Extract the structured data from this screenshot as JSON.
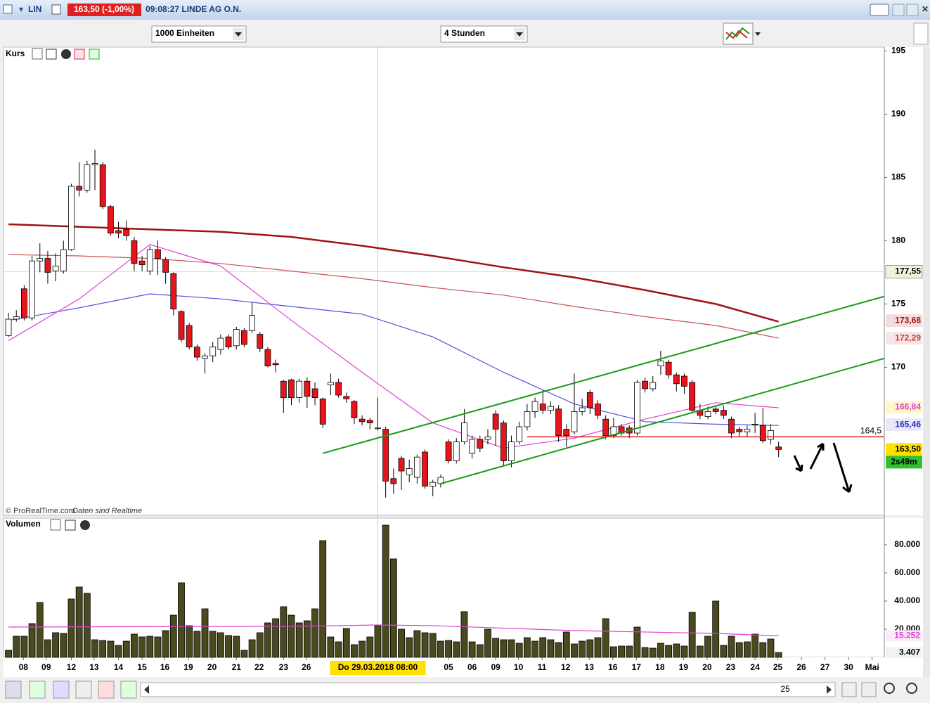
{
  "window": {
    "symbol": "LIN",
    "quote": "163,50 (-1,00%)",
    "time_name": "09:08:27 LINDE AG O.N.",
    "units": "1000 Einheiten",
    "period": "4 Stunden",
    "price_panel": "Kurs",
    "volume_panel": "Volumen",
    "copyright": "© ProRealTime.com",
    "realtime": "Daten sind Realtime",
    "scroll_label": "25"
  },
  "chart_data": [
    {
      "type": "candlestick",
      "xlim": [
        -0.63,
        111.45
      ],
      "ylim": [
        158.3,
        195.3
      ],
      "yticks": [
        170,
        175,
        180,
        185,
        190,
        195
      ],
      "up_color": "#ffffff",
      "down_color": "#e8141c",
      "open": [
        172.5,
        173.8,
        176.2,
        173.9,
        178.4,
        178.6,
        177.6,
        177.6,
        179.3,
        184.3,
        184.0,
        186.0,
        186.0,
        182.7,
        180.8,
        180.9,
        180.0,
        178.4,
        177.6,
        179.3,
        178.5,
        177.4,
        174.4,
        173.3,
        171.6,
        170.7,
        170.9,
        171.4,
        172.4,
        171.7,
        172.9,
        172.9,
        172.6,
        171.4,
        170.3,
        168.9,
        169.0,
        167.6,
        168.9,
        168.3,
        167.5,
        168.6,
        168.8,
        167.7,
        167.3,
        165.9,
        165.8,
        165.2,
        165.1,
        161.2,
        162.8,
        161.5,
        161.3,
        163.3,
        160.6,
        160.8,
        164.1,
        162.6,
        164.1,
        163.2,
        164.3,
        164.3,
        166.3,
        165.6,
        162.6,
        164.1,
        165.3,
        166.5,
        167.1,
        166.6,
        166.7,
        165.1,
        164.9,
        166.5,
        168.0,
        167.1,
        165.9,
        164.6,
        165.3,
        165.2,
        164.8,
        168.9,
        168.3,
        170.1,
        170.4,
        169.4,
        169.3,
        168.8,
        166.6,
        166.1,
        166.7,
        166.6,
        165.9,
        165.1,
        164.9,
        165.5,
        165.4,
        164.3,
        163.7
      ],
      "high": [
        174.3,
        174.5,
        176.5,
        178.8,
        179.8,
        179.2,
        179.0,
        180.0,
        184.5,
        186.2,
        186.3,
        187.2,
        186.2,
        182.8,
        181.5,
        181.6,
        180.3,
        178.8,
        179.6,
        180.0,
        178.7,
        177.5,
        174.5,
        173.5,
        171.8,
        171.1,
        172.0,
        172.6,
        172.6,
        173.2,
        173.1,
        175.1,
        172.8,
        171.6,
        170.6,
        169.0,
        169.1,
        169.1,
        169.2,
        168.8,
        167.6,
        169.5,
        169.1,
        168.0,
        167.4,
        166.2,
        166.0,
        167.6,
        165.3,
        162.0,
        163.0,
        162.7,
        163.1,
        163.5,
        161.1,
        161.5,
        164.3,
        164.4,
        166.7,
        164.6,
        164.6,
        165.1,
        166.6,
        165.8,
        164.6,
        165.7,
        167.1,
        167.6,
        168.2,
        167.3,
        167.0,
        165.5,
        169.5,
        167.5,
        168.2,
        167.4,
        166.2,
        166.0,
        165.5,
        165.4,
        169.0,
        169.2,
        169.3,
        171.3,
        170.6,
        169.6,
        169.5,
        169.0,
        167.1,
        166.9,
        167.0,
        167.0,
        166.1,
        165.3,
        165.4,
        166.4,
        166.8,
        165.5,
        164.1
      ],
      "low": [
        172.4,
        173.6,
        173.7,
        173.7,
        177.5,
        176.6,
        176.8,
        177.4,
        179.2,
        183.5,
        183.8,
        184.0,
        182.5,
        180.4,
        180.2,
        180.0,
        177.6,
        177.6,
        177.3,
        177.3,
        176.6,
        174.1,
        172.0,
        171.4,
        170.5,
        169.5,
        170.4,
        171.0,
        171.4,
        171.4,
        171.6,
        172.7,
        171.2,
        170.0,
        169.6,
        166.4,
        167.0,
        167.2,
        166.8,
        167.0,
        165.2,
        167.8,
        167.6,
        167.2,
        165.5,
        165.4,
        165.1,
        165.0,
        159.7,
        160.0,
        160.3,
        160.9,
        160.8,
        160.4,
        159.8,
        160.5,
        162.4,
        162.4,
        163.9,
        162.8,
        163.3,
        163.9,
        163.8,
        162.2,
        162.1,
        163.9,
        165.0,
        166.0,
        166.3,
        166.3,
        164.1,
        163.7,
        164.7,
        166.2,
        166.3,
        165.9,
        164.3,
        164.4,
        164.6,
        164.4,
        164.6,
        168.0,
        168.1,
        169.4,
        169.1,
        168.1,
        167.9,
        166.4,
        165.9,
        165.9,
        166.3,
        165.9,
        164.4,
        164.5,
        164.5,
        164.8,
        164.0,
        163.9,
        162.9
      ],
      "close": [
        173.8,
        174.0,
        173.9,
        178.4,
        178.6,
        177.5,
        178.0,
        179.3,
        184.3,
        184.0,
        186.0,
        186.1,
        182.7,
        180.6,
        180.6,
        180.4,
        178.2,
        178.1,
        179.3,
        178.6,
        177.5,
        174.6,
        172.2,
        171.6,
        170.8,
        170.9,
        171.6,
        172.3,
        171.6,
        173.0,
        171.8,
        174.1,
        171.5,
        170.1,
        170.2,
        167.6,
        167.6,
        168.9,
        167.7,
        167.6,
        165.5,
        168.8,
        167.8,
        167.5,
        166.0,
        165.7,
        165.6,
        165.2,
        161.0,
        160.8,
        161.8,
        162.0,
        162.9,
        160.6,
        160.9,
        161.3,
        162.6,
        164.1,
        165.6,
        164.3,
        163.6,
        164.5,
        165.1,
        162.6,
        164.1,
        165.3,
        166.5,
        167.3,
        166.6,
        166.9,
        164.6,
        164.6,
        166.5,
        166.8,
        166.8,
        166.2,
        164.6,
        165.3,
        164.8,
        164.8,
        168.8,
        168.3,
        168.8,
        170.5,
        169.4,
        168.7,
        168.5,
        166.6,
        166.2,
        166.5,
        166.5,
        166.2,
        164.8,
        164.9,
        165.1,
        165.5,
        164.2,
        165.0,
        163.5
      ],
      "series": [
        {
          "color": "#a01212",
          "width": 2.5,
          "x": [
            0,
            9,
            18,
            27,
            36,
            45,
            54,
            63,
            72,
            81,
            90,
            98
          ],
          "values": [
            181.3,
            181.1,
            180.9,
            180.7,
            180.3,
            179.6,
            178.8,
            177.9,
            177.1,
            176.1,
            175.0,
            173.6
          ]
        },
        {
          "color": "#c85050",
          "width": 1.2,
          "x": [
            0,
            9,
            18,
            27,
            36,
            45,
            54,
            63,
            72,
            81,
            90,
            98
          ],
          "values": [
            178.9,
            178.8,
            178.6,
            178.2,
            177.6,
            177.0,
            176.3,
            175.7,
            174.8,
            174.0,
            173.3,
            172.3
          ]
        },
        {
          "color": "#5050e0",
          "width": 1.2,
          "x": [
            0,
            9,
            18,
            27,
            36,
            45,
            54,
            63,
            72,
            81,
            90,
            98
          ],
          "values": [
            173.7,
            174.7,
            175.8,
            175.4,
            174.8,
            174.2,
            172.4,
            169.6,
            167.1,
            165.7,
            165.5,
            165.4
          ]
        },
        {
          "color": "#e040d0",
          "width": 1.2,
          "x": [
            0,
            9,
            18,
            27,
            36,
            45,
            54,
            63,
            72,
            81,
            90,
            98
          ],
          "values": [
            172.1,
            175.4,
            179.7,
            178.0,
            173.7,
            169.6,
            165.6,
            163.6,
            164.4,
            165.9,
            167.2,
            166.8
          ]
        }
      ],
      "trendlines": [
        {
          "color": "#1a9a1a",
          "x": [
            40,
            111.45
          ],
          "values": [
            163.2,
            175.6
          ]
        },
        {
          "color": "#1a9a1a",
          "x": [
            55,
            111.45
          ],
          "values": [
            160.8,
            170.7
          ]
        }
      ],
      "level": {
        "value": 164.5,
        "label": "164,5",
        "color": "#e02020",
        "x": [
          66,
          111.45
        ]
      },
      "crosshair": {
        "index": 47,
        "value": 177.55,
        "label": "177,55",
        "date": "Do 29.03.2018 08:00"
      },
      "price_tags": [
        {
          "value": 173.68,
          "label": "173,68",
          "color": "#a01212",
          "bg": "#f4dcdc"
        },
        {
          "value": 172.29,
          "label": "172,29",
          "color": "#c04040",
          "bg": "#f7e4e4"
        },
        {
          "value": 166.84,
          "label": "166,84",
          "color": "#e040d0",
          "bg": "#fff6c8"
        },
        {
          "value": 165.46,
          "label": "165,46",
          "color": "#3030d0",
          "bg": "#e8e8f8"
        },
        {
          "value": 163.5,
          "label": "163,50",
          "color": "#000000",
          "bg": "#ffe000"
        }
      ],
      "countdown": "2s49m"
    },
    {
      "type": "bar",
      "xlim": [
        -0.63,
        111.45
      ],
      "ylim": [
        0,
        99000
      ],
      "yticks": [
        {
          "value": 20000,
          "label": "20.000"
        },
        {
          "value": 40000,
          "label": "40.000"
        },
        {
          "value": 60000,
          "label": "60.000"
        },
        {
          "value": 80000,
          "label": "80.000"
        }
      ],
      "color": "#4a4a1e",
      "values": [
        5000,
        15000,
        15000,
        24000,
        39000,
        12500,
        17500,
        17000,
        41500,
        50000,
        45500,
        12500,
        12000,
        11500,
        8500,
        11500,
        16500,
        14500,
        15000,
        14500,
        19000,
        30000,
        53000,
        22500,
        18500,
        34500,
        18500,
        17500,
        15500,
        15000,
        5000,
        12500,
        17500,
        24500,
        27500,
        36000,
        30000,
        24500,
        26000,
        34500,
        83000,
        14500,
        11000,
        20500,
        9000,
        11500,
        14500,
        22500,
        94000,
        70000,
        20000,
        14000,
        19000,
        17500,
        17000,
        11500,
        12000,
        11000,
        32500,
        11000,
        9000,
        20000,
        13500,
        12500,
        12500,
        10000,
        14000,
        11500,
        14000,
        12500,
        10500,
        18000,
        9500,
        11500,
        12500,
        14000,
        27500,
        7500,
        8000,
        8000,
        21500,
        7000,
        6500,
        10000,
        8500,
        9500,
        8000,
        32000,
        8000,
        15000,
        40000,
        8500,
        15000,
        10500,
        11000,
        16500,
        10500,
        13000,
        3407
      ],
      "series": [
        {
          "color": "#e040d0",
          "x": [
            0,
            18,
            36,
            47,
            54,
            72,
            90,
            98
          ],
          "values": [
            21500,
            21800,
            22000,
            23000,
            22500,
            19000,
            17000,
            15252
          ]
        }
      ],
      "tags": [
        {
          "value": 15252,
          "label": "15.252",
          "color": "#e040d0",
          "bg": "#fbe8f8"
        },
        {
          "value": 3407,
          "label": "3.407",
          "color": "#000000",
          "bg": "#f2f2f2"
        }
      ],
      "xticks": [
        {
          "value": 1.9,
          "label": "08"
        },
        {
          "value": 4.8,
          "label": "09"
        },
        {
          "value": 8.0,
          "label": "12"
        },
        {
          "value": 10.9,
          "label": "13"
        },
        {
          "value": 14.0,
          "label": "14"
        },
        {
          "value": 17.0,
          "label": "15"
        },
        {
          "value": 19.9,
          "label": "16"
        },
        {
          "value": 22.9,
          "label": "19"
        },
        {
          "value": 25.9,
          "label": "20"
        },
        {
          "value": 29.0,
          "label": "21"
        },
        {
          "value": 31.9,
          "label": "22"
        },
        {
          "value": 35.0,
          "label": "23"
        },
        {
          "value": 37.9,
          "label": "26"
        },
        {
          "value": 56.0,
          "label": "05"
        },
        {
          "value": 59.0,
          "label": "06"
        },
        {
          "value": 62.0,
          "label": "09"
        },
        {
          "value": 64.9,
          "label": "10"
        },
        {
          "value": 67.9,
          "label": "11"
        },
        {
          "value": 70.9,
          "label": "12"
        },
        {
          "value": 73.9,
          "label": "13"
        },
        {
          "value": 76.9,
          "label": "16"
        },
        {
          "value": 79.9,
          "label": "17"
        },
        {
          "value": 82.9,
          "label": "18"
        },
        {
          "value": 85.9,
          "label": "19"
        },
        {
          "value": 88.9,
          "label": "20"
        },
        {
          "value": 91.9,
          "label": "23"
        },
        {
          "value": 95.0,
          "label": "24"
        },
        {
          "value": 97.9,
          "label": "25"
        },
        {
          "value": 100.9,
          "label": "26"
        },
        {
          "value": 103.9,
          "label": "27"
        },
        {
          "value": 106.9,
          "label": "30"
        },
        {
          "value": 109.9,
          "label": "Mai"
        }
      ]
    }
  ]
}
